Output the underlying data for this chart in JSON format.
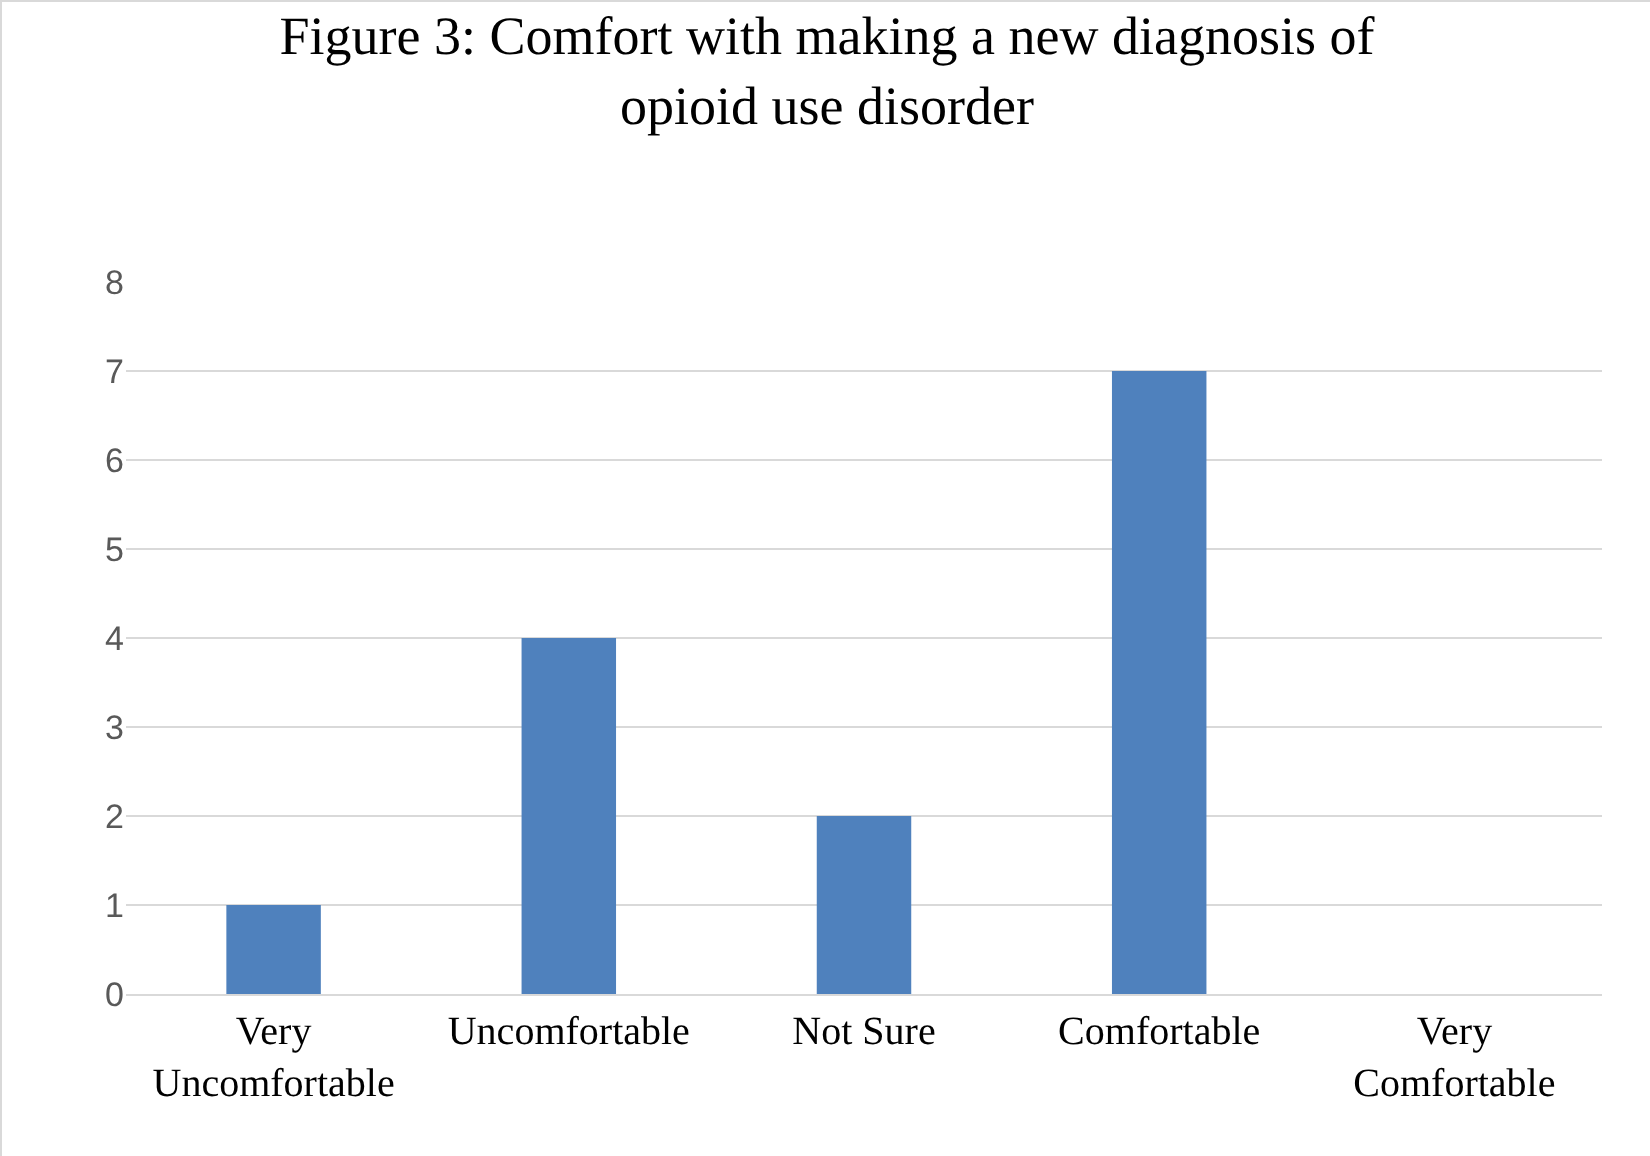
{
  "chart_data": {
    "type": "bar",
    "title": "Figure 3: Comfort with making a new diagnosis of opioid use disorder",
    "categories": [
      "Very Uncomfortable",
      "Uncomfortable",
      "Not Sure",
      "Comfortable",
      "Very Comfortable"
    ],
    "values": [
      1,
      4,
      2,
      7,
      0
    ],
    "color": "#4f81bd",
    "ylim": [
      0,
      8
    ],
    "yticks": [
      0,
      1,
      2,
      3,
      4,
      5,
      6,
      7,
      8
    ],
    "grid": true
  }
}
